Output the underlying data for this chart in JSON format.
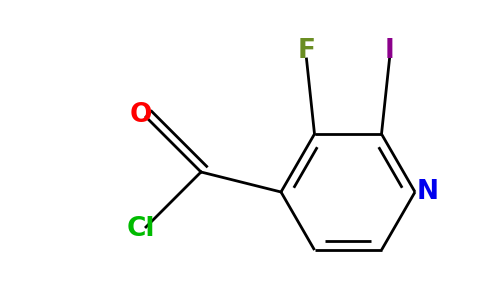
{
  "figsize": [
    4.84,
    3.0
  ],
  "dpi": 100,
  "bg_color": "#FFFFFF",
  "bond_lw": 2.0,
  "font_size": 19,
  "colors": {
    "bond": "#000000",
    "N": "#0000EE",
    "F": "#6B8E23",
    "I": "#8B008B",
    "O": "#FF0000",
    "Cl": "#00BB00"
  }
}
